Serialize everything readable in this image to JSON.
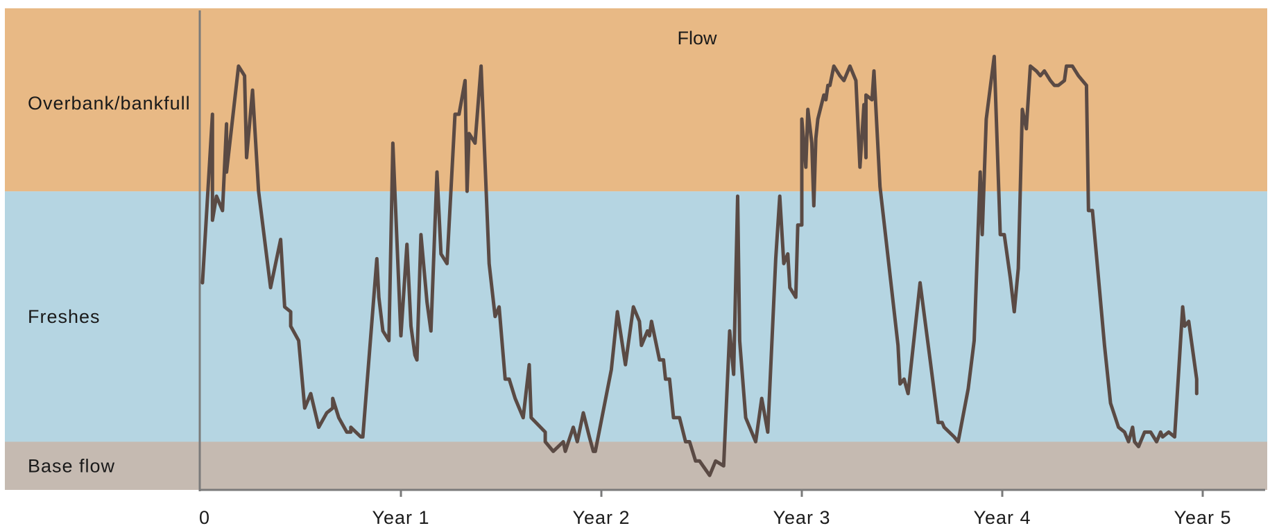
{
  "chart_data": {
    "type": "line",
    "title": "Flow",
    "xlabel": "",
    "ylabel": "",
    "xlim": [
      0,
      5
    ],
    "ylim": [
      0,
      100
    ],
    "grid": false,
    "x_ticks": [
      {
        "value": 0,
        "label": "0"
      },
      {
        "value": 1,
        "label": "Year 1"
      },
      {
        "value": 2,
        "label": "Year 2"
      },
      {
        "value": 3,
        "label": "Year 3"
      },
      {
        "value": 4,
        "label": "Year 4"
      },
      {
        "value": 5,
        "label": "Year 5"
      }
    ],
    "bands": [
      {
        "label": "Base flow",
        "from": 0,
        "to": 10,
        "color": "#c5bab1"
      },
      {
        "label": "Freshes",
        "from": 10,
        "to": 62,
        "color": "#b5d5e2"
      },
      {
        "label": "Overbank/bankfull",
        "from": 62,
        "to": 100,
        "color": "#e8b985"
      }
    ],
    "line_color": "#5a4a44",
    "axis_color": "#7a7a7a",
    "series": [
      {
        "points": [
          [
            0.01,
            43
          ],
          [
            0.06,
            78
          ],
          [
            0.06,
            56
          ],
          [
            0.08,
            61
          ],
          [
            0.11,
            58
          ],
          [
            0.13,
            76
          ],
          [
            0.13,
            66
          ],
          [
            0.19,
            88
          ],
          [
            0.22,
            86
          ],
          [
            0.23,
            69
          ],
          [
            0.26,
            83
          ],
          [
            0.29,
            62
          ],
          [
            0.35,
            42
          ],
          [
            0.35,
            42
          ],
          [
            0.4,
            52
          ],
          [
            0.42,
            38
          ],
          [
            0.45,
            37
          ],
          [
            0.45,
            34
          ],
          [
            0.49,
            31
          ],
          [
            0.52,
            17
          ],
          [
            0.55,
            20
          ],
          [
            0.59,
            13
          ],
          [
            0.63,
            16
          ],
          [
            0.66,
            17
          ],
          [
            0.66,
            19
          ],
          [
            0.69,
            15
          ],
          [
            0.73,
            12
          ],
          [
            0.75,
            12
          ],
          [
            0.75,
            13
          ],
          [
            0.8,
            11
          ],
          [
            0.81,
            11
          ],
          [
            0.88,
            48
          ],
          [
            0.89,
            40
          ],
          [
            0.91,
            33
          ],
          [
            0.94,
            31
          ],
          [
            0.96,
            72
          ],
          [
            1.0,
            32
          ],
          [
            1.03,
            51
          ],
          [
            1.05,
            34
          ],
          [
            1.07,
            28
          ],
          [
            1.08,
            27
          ],
          [
            1.1,
            53
          ],
          [
            1.13,
            39
          ],
          [
            1.15,
            33
          ],
          [
            1.18,
            66
          ],
          [
            1.2,
            49
          ],
          [
            1.23,
            47
          ],
          [
            1.27,
            78
          ],
          [
            1.29,
            78
          ],
          [
            1.32,
            85
          ],
          [
            1.33,
            62
          ],
          [
            1.34,
            74
          ],
          [
            1.37,
            72
          ],
          [
            1.4,
            88
          ],
          [
            1.44,
            47
          ],
          [
            1.47,
            36
          ],
          [
            1.49,
            38
          ],
          [
            1.52,
            23
          ],
          [
            1.54,
            23
          ],
          [
            1.57,
            19
          ],
          [
            1.61,
            15
          ],
          [
            1.64,
            26
          ],
          [
            1.65,
            15
          ],
          [
            1.72,
            12
          ],
          [
            1.72,
            10
          ],
          [
            1.76,
            8
          ],
          [
            1.81,
            10
          ],
          [
            1.82,
            8
          ],
          [
            1.86,
            13
          ],
          [
            1.88,
            10
          ],
          [
            1.91,
            16
          ],
          [
            1.94,
            11
          ],
          [
            1.96,
            8
          ],
          [
            1.97,
            8
          ],
          [
            2.05,
            25
          ],
          [
            2.08,
            37
          ],
          [
            2.12,
            26
          ],
          [
            2.16,
            38
          ],
          [
            2.19,
            35
          ],
          [
            2.2,
            30
          ],
          [
            2.23,
            33
          ],
          [
            2.24,
            32
          ],
          [
            2.25,
            35
          ],
          [
            2.29,
            27
          ],
          [
            2.31,
            27
          ],
          [
            2.32,
            23
          ],
          [
            2.34,
            23
          ],
          [
            2.36,
            15
          ],
          [
            2.39,
            15
          ],
          [
            2.42,
            10
          ],
          [
            2.44,
            10
          ],
          [
            2.47,
            6
          ],
          [
            2.49,
            6
          ],
          [
            2.54,
            3
          ],
          [
            2.57,
            6
          ],
          [
            2.61,
            5
          ],
          [
            2.64,
            33
          ],
          [
            2.66,
            24
          ],
          [
            2.68,
            61
          ],
          [
            2.69,
            31
          ],
          [
            2.72,
            15
          ],
          [
            2.77,
            10
          ],
          [
            2.8,
            19
          ],
          [
            2.83,
            12
          ],
          [
            2.87,
            48
          ],
          [
            2.89,
            61
          ],
          [
            2.91,
            47
          ],
          [
            2.93,
            49
          ],
          [
            2.94,
            42
          ],
          [
            2.97,
            40
          ],
          [
            2.98,
            55
          ],
          [
            3.0,
            55
          ],
          [
            3.0,
            77
          ],
          [
            3.02,
            67
          ],
          [
            3.03,
            79
          ],
          [
            3.05,
            72
          ],
          [
            3.06,
            59
          ],
          [
            3.07,
            73
          ],
          [
            3.08,
            77
          ],
          [
            3.11,
            82
          ],
          [
            3.12,
            81
          ],
          [
            3.13,
            84
          ],
          [
            3.14,
            84
          ],
          [
            3.16,
            88
          ],
          [
            3.19,
            86
          ],
          [
            3.21,
            85
          ],
          [
            3.24,
            88
          ],
          [
            3.27,
            85
          ],
          [
            3.29,
            67
          ],
          [
            3.31,
            80
          ],
          [
            3.32,
            69
          ],
          [
            3.32,
            82
          ],
          [
            3.35,
            81
          ],
          [
            3.36,
            87
          ],
          [
            3.39,
            63
          ],
          [
            3.42,
            52
          ],
          [
            3.48,
            30
          ],
          [
            3.49,
            22
          ],
          [
            3.51,
            23
          ],
          [
            3.53,
            20
          ],
          [
            3.59,
            43
          ],
          [
            3.64,
            27
          ],
          [
            3.68,
            14
          ],
          [
            3.7,
            14
          ],
          [
            3.71,
            13
          ],
          [
            3.76,
            11
          ],
          [
            3.78,
            10
          ],
          [
            3.83,
            21
          ],
          [
            3.86,
            31
          ],
          [
            3.89,
            66
          ],
          [
            3.9,
            53
          ],
          [
            3.92,
            77
          ],
          [
            3.96,
            90
          ],
          [
            3.99,
            53
          ],
          [
            4.01,
            53
          ],
          [
            4.04,
            44
          ],
          [
            4.06,
            37
          ],
          [
            4.08,
            46
          ],
          [
            4.1,
            79
          ],
          [
            4.12,
            75
          ],
          [
            4.14,
            88
          ],
          [
            4.17,
            87
          ],
          [
            4.19,
            86
          ],
          [
            4.21,
            87
          ],
          [
            4.24,
            85
          ],
          [
            4.26,
            84
          ],
          [
            4.28,
            84
          ],
          [
            4.31,
            85
          ],
          [
            4.32,
            88
          ],
          [
            4.35,
            88
          ],
          [
            4.38,
            86
          ],
          [
            4.4,
            85
          ],
          [
            4.42,
            84
          ],
          [
            4.43,
            58
          ],
          [
            4.45,
            58
          ],
          [
            4.51,
            30
          ],
          [
            4.54,
            18
          ],
          [
            4.58,
            13
          ],
          [
            4.61,
            12
          ],
          [
            4.63,
            10
          ],
          [
            4.65,
            13
          ],
          [
            4.66,
            10
          ],
          [
            4.68,
            9
          ],
          [
            4.69,
            10
          ],
          [
            4.71,
            12
          ],
          [
            4.74,
            12
          ],
          [
            4.77,
            10
          ],
          [
            4.79,
            12
          ],
          [
            4.8,
            11
          ],
          [
            4.83,
            12
          ],
          [
            4.86,
            11
          ],
          [
            4.9,
            38
          ],
          [
            4.91,
            34
          ],
          [
            4.93,
            35
          ],
          [
            4.97,
            23
          ],
          [
            4.97,
            20
          ]
        ]
      }
    ]
  }
}
